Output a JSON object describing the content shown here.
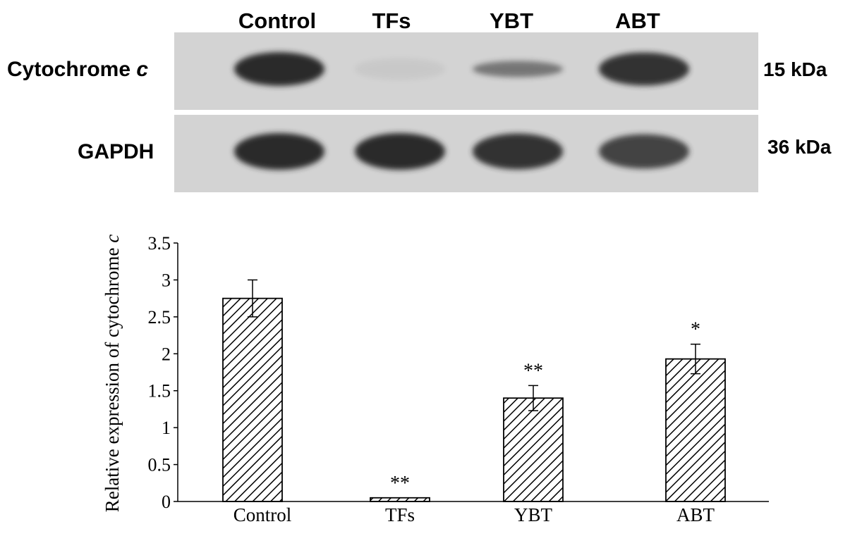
{
  "blot": {
    "lanes": [
      "Control",
      "TFs",
      "YBT",
      "ABT"
    ],
    "rows": [
      {
        "label": "Cytochrome",
        "label_italic": "c",
        "marker": "15",
        "marker_unit": "kDa",
        "intensities": [
          1.0,
          0.06,
          0.55,
          0.95
        ]
      },
      {
        "label": "GAPDH",
        "label_italic": "",
        "marker": "36",
        "marker_unit": "kDa",
        "intensities": [
          1.0,
          1.0,
          0.95,
          0.85
        ]
      }
    ],
    "colors": {
      "background": "#d3d3d3",
      "band": "#2a2a2a"
    }
  },
  "chart_data": {
    "type": "bar",
    "categories": [
      "Control",
      "TFs",
      "YBT",
      "ABT"
    ],
    "values": [
      2.75,
      0.05,
      1.4,
      1.93
    ],
    "errors": [
      0.25,
      0.0,
      0.17,
      0.2
    ],
    "annotations": [
      "",
      "**",
      "**",
      "*"
    ],
    "ylabel": "Relative expression of cytochrome",
    "ylabel_italic": "c",
    "ylim": [
      0,
      3.5
    ],
    "yticks": [
      "0",
      "0.5",
      "1",
      "1.5",
      "2",
      "2.5",
      "3",
      "3.5"
    ],
    "grid": false,
    "fill": "diagonal-hatch"
  }
}
